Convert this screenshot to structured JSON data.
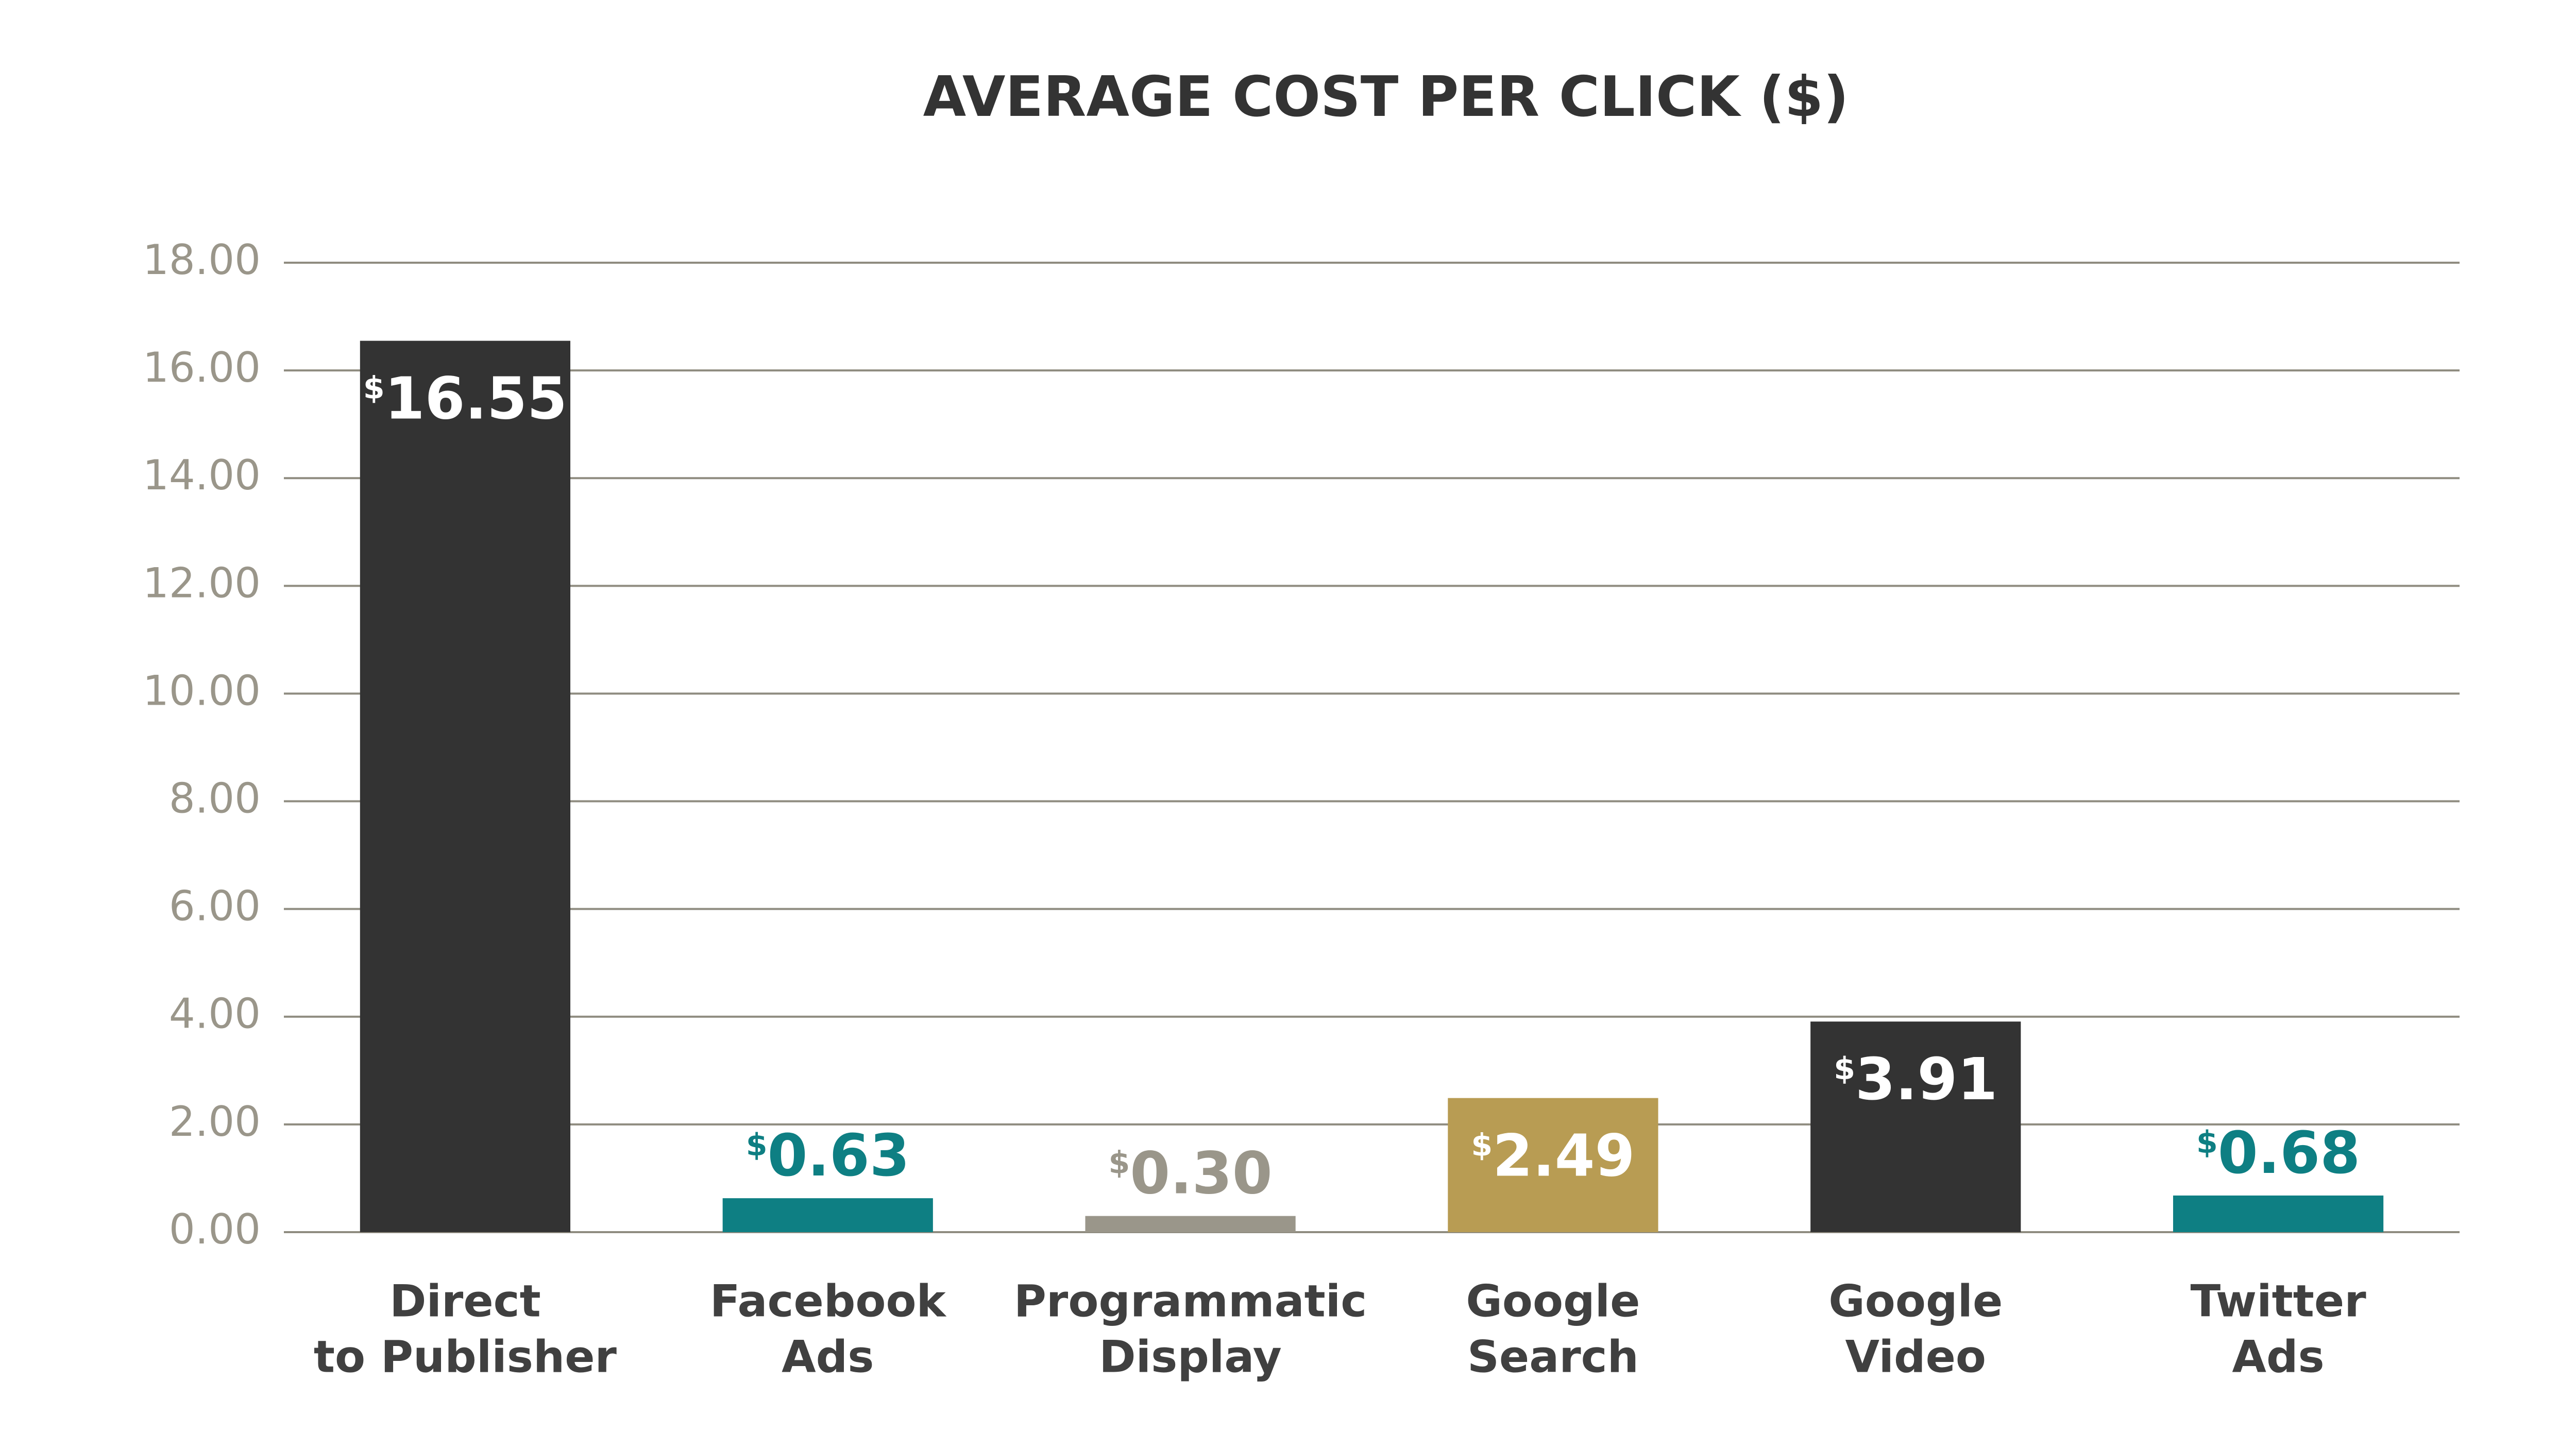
{
  "chart_data": {
    "type": "bar",
    "title": "AVERAGE COST PER CLICK ($)",
    "categories": [
      [
        "Direct",
        "to Publisher"
      ],
      [
        "Facebook",
        "Ads"
      ],
      [
        "Programmatic",
        "Display"
      ],
      [
        "Google",
        "Search"
      ],
      [
        "Google",
        "Video"
      ],
      [
        "Twitter",
        "Ads"
      ]
    ],
    "values": [
      16.55,
      0.63,
      0.3,
      2.49,
      3.91,
      0.68
    ],
    "value_labels": [
      "$16.55",
      "$0.63",
      "$0.30",
      "$2.49",
      "$3.91",
      "$0.68"
    ],
    "colors": [
      "#333333",
      "#0e7f83",
      "#9a968a",
      "#b89c53",
      "#333333",
      "#0e7f83"
    ],
    "ylim": [
      0,
      18
    ],
    "yticks": [
      {
        "value": 0,
        "label": "0.00"
      },
      {
        "value": 2,
        "label": "2.00"
      },
      {
        "value": 4,
        "label": "4.00"
      },
      {
        "value": 6,
        "label": "6.00"
      },
      {
        "value": 8,
        "label": "8.00"
      },
      {
        "value": 10,
        "label": "10.00"
      },
      {
        "value": 12,
        "label": "12.00"
      },
      {
        "value": 14,
        "label": "14.00"
      },
      {
        "value": 16,
        "label": "16.00"
      },
      {
        "value": 18,
        "label": "18.00"
      }
    ],
    "grid": true
  }
}
